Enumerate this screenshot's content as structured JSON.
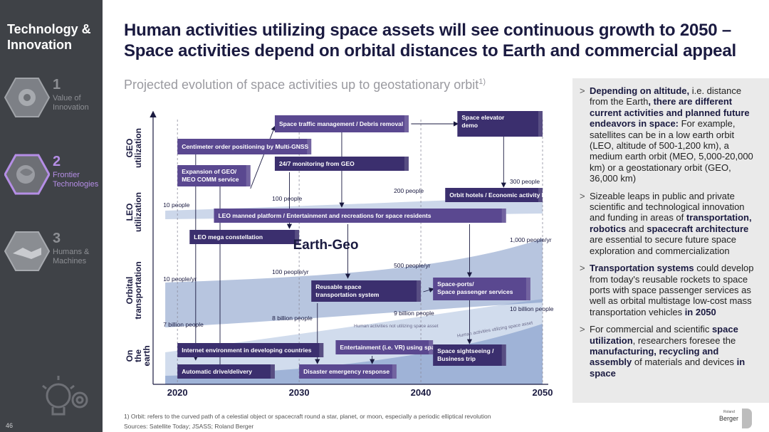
{
  "sidebar": {
    "title": "Technology & Innovation",
    "items": [
      {
        "num": "1",
        "label": "Value of Innovation",
        "active": false
      },
      {
        "num": "2",
        "label": "Frontier Technologies",
        "active": true
      },
      {
        "num": "3",
        "label": "Humans & Machines",
        "active": false
      }
    ],
    "page_number": "46"
  },
  "header": {
    "headline_line1": "Human activities utilizing space assets will see continuous growth to 2050 –",
    "headline_line2": "Space activities depend on orbital distances to Earth and commercial appeal",
    "subtitle": "Projected evolution of space activities up to geostationary orbit",
    "subtitle_sup": "1)"
  },
  "chart_data": {
    "type": "area",
    "x_ticks": [
      "2020",
      "2030",
      "2040",
      "2050"
    ],
    "rows": [
      "GEO utilization",
      "LEO utilization",
      "Orbital transportation",
      "On the earth"
    ],
    "center_label": "Earth-Geo",
    "activities": [
      {
        "label": "Space traffic management / Debris removal",
        "row": "GEO utilization",
        "start": 2028,
        "end": 2039
      },
      {
        "label": "Space elevator demo",
        "row": "GEO utilization",
        "start": 2043,
        "end": 2050
      },
      {
        "label": "Centimeter order positioning by Multi-GNSS",
        "row": "GEO utilization",
        "start": 2020,
        "end": 2031
      },
      {
        "label": "24/7 monitoring from GEO",
        "row": "GEO utilization",
        "start": 2028,
        "end": 2039
      },
      {
        "label": "Expansion of GEO/MEO COMM service",
        "row": "GEO utilization",
        "start": 2020,
        "end": 2026
      },
      {
        "label": "Orbit hotels / Economic activity bases",
        "row": "LEO utilization",
        "start": 2042,
        "end": 2050
      },
      {
        "label": "LEO manned platform / Entertainment and recreations for space residents",
        "row": "LEO utilization",
        "start": 2023,
        "end": 2047
      },
      {
        "label": "LEO mega constellation",
        "row": "LEO utilization",
        "start": 2021,
        "end": 2030
      },
      {
        "label": "Reusable space transportation system",
        "row": "Orbital transportation",
        "start": 2031,
        "end": 2040
      },
      {
        "label": "Space-ports/ Space passenger services",
        "row": "Orbital transportation",
        "start": 2041,
        "end": 2049
      },
      {
        "label": "Internet environment in developing countries",
        "row": "On the earth",
        "start": 2020,
        "end": 2032
      },
      {
        "label": "Entertainment (i.e. VR) using space",
        "row": "On the earth",
        "start": 2033,
        "end": 2041
      },
      {
        "label": "Space sightseeing / Business trip",
        "row": "On the earth",
        "start": 2041,
        "end": 2047
      },
      {
        "label": "Automatic drive/delivery",
        "row": "On the earth",
        "start": 2020,
        "end": 2028
      },
      {
        "label": "Disaster emergency response",
        "row": "On the earth",
        "start": 2030,
        "end": 2038
      }
    ],
    "series": [
      {
        "name": "LEO people",
        "points": [
          {
            "x": "2020",
            "label": "10 people"
          },
          {
            "x": "2030",
            "label": "100 people"
          },
          {
            "x": "2040",
            "label": "200 people"
          },
          {
            "x": "2050",
            "label": "300 people"
          }
        ]
      },
      {
        "name": "Orbital transportation",
        "points": [
          {
            "x": "2020",
            "label": "10 people/yr"
          },
          {
            "x": "2030",
            "label": "100 people/yr"
          },
          {
            "x": "2040",
            "label": "500 people/yr"
          },
          {
            "x": "2050",
            "label": "1,000 people/yr"
          }
        ]
      },
      {
        "name": "Earth population",
        "points": [
          {
            "x": "2020",
            "label": "7 billion people"
          },
          {
            "x": "2030",
            "label": "8 billion people"
          },
          {
            "x": "2040",
            "label": "9 billion people"
          },
          {
            "x": "2050",
            "label": "10 billion people"
          }
        ]
      }
    ],
    "curve_labels": [
      "Human activities not utilizing space asset",
      "Human activities utilizing space asset"
    ],
    "colors": {
      "box_dark": "#3b2f6e",
      "box_mid": "#5a4890",
      "box_light": "#7a6aaf",
      "band_light": "#c6d3e8",
      "band_mid": "#8ea6cf",
      "band_dark": "#5f7fb8"
    }
  },
  "panel": {
    "bullets": [
      "<b>Depending on altitude,</b> i.e. distance from the Earth<b>, there are different current activities and planned future endeavors in space:</b> For example, satellites can be in a low earth orbit (LEO, altitude of 500-1,200 km), a medium earth orbit (MEO, 5,000-20,000 km) or a geostationary orbit (GEO, 36,000 km)",
      "Sizeable leaps in public and private scientific and technological innovation and funding in areas of <b>transportation, robotics</b> and <b>spacecraft architecture</b> are essential to secure future space exploration and commercialization",
      "<b>Transportation systems</b> could develop from today's reusable rockets to space ports with space passenger services as well as orbital multistage low-cost mass transportation vehicles <b>in 2050</b>",
      "For commercial and scientific <b>space utilization</b>, researchers foresee the <b>manufacturing, recycling and assembly</b> of materials and devices <b>in space</b>"
    ]
  },
  "footer": {
    "footnote": "1) Orbit: refers to the curved path of a celestial object or spacecraft round a star, planet, or moon, especially a periodic elliptical revolution",
    "sources": "Sources: Satellite Today; JSASS; Roland Berger"
  },
  "logo": {
    "small": "Roland",
    "main": "Berger"
  }
}
